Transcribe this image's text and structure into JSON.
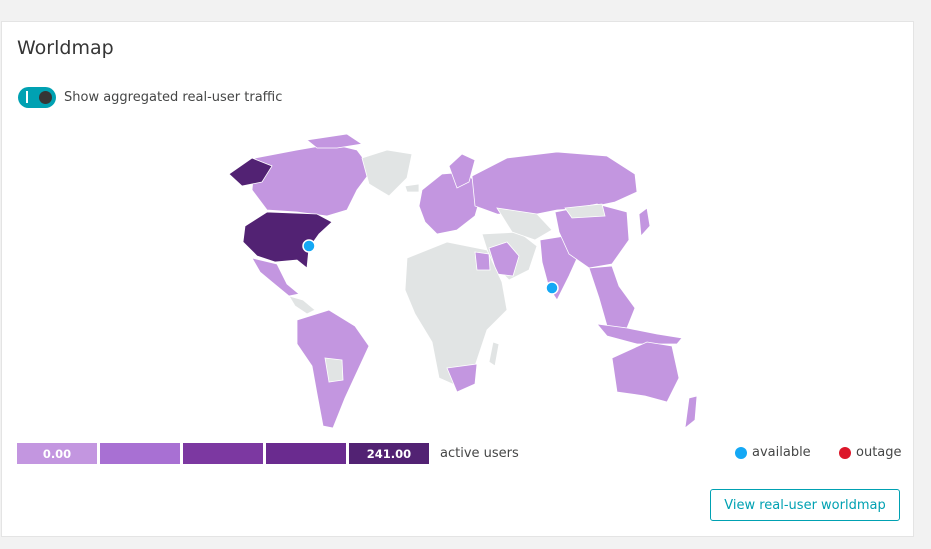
{
  "widget": {
    "title": "Worldmap"
  },
  "toggle": {
    "label": "Show aggregated real-user traffic",
    "state": "on",
    "color": "#00a1b2"
  },
  "map": {
    "colors": {
      "no_data": "#e1e4e4",
      "low": "#c396e0",
      "high": "#522273",
      "border": "#ffffff"
    },
    "highlighted_regions": [
      {
        "name": "United States",
        "level": "max"
      },
      {
        "name": "Alaska",
        "level": "max"
      }
    ],
    "markers": [
      {
        "status": "available",
        "location": "US east coast"
      },
      {
        "status": "available",
        "location": "India"
      }
    ]
  },
  "scale": {
    "segments": [
      {
        "label": "0.00",
        "color": "#c396e0"
      },
      {
        "label": "",
        "color": "#a870d3"
      },
      {
        "label": "",
        "color": "#7c38a1"
      },
      {
        "label": "",
        "color": "#6a2b8f"
      },
      {
        "label": "241.00",
        "color": "#522273"
      }
    ],
    "unit_label": "active users"
  },
  "status_legend": {
    "available": {
      "label": "available",
      "color": "#14a8f5"
    },
    "outage": {
      "label": "outage",
      "color": "#dc172a"
    }
  },
  "button": {
    "label": "View real-user worldmap"
  }
}
